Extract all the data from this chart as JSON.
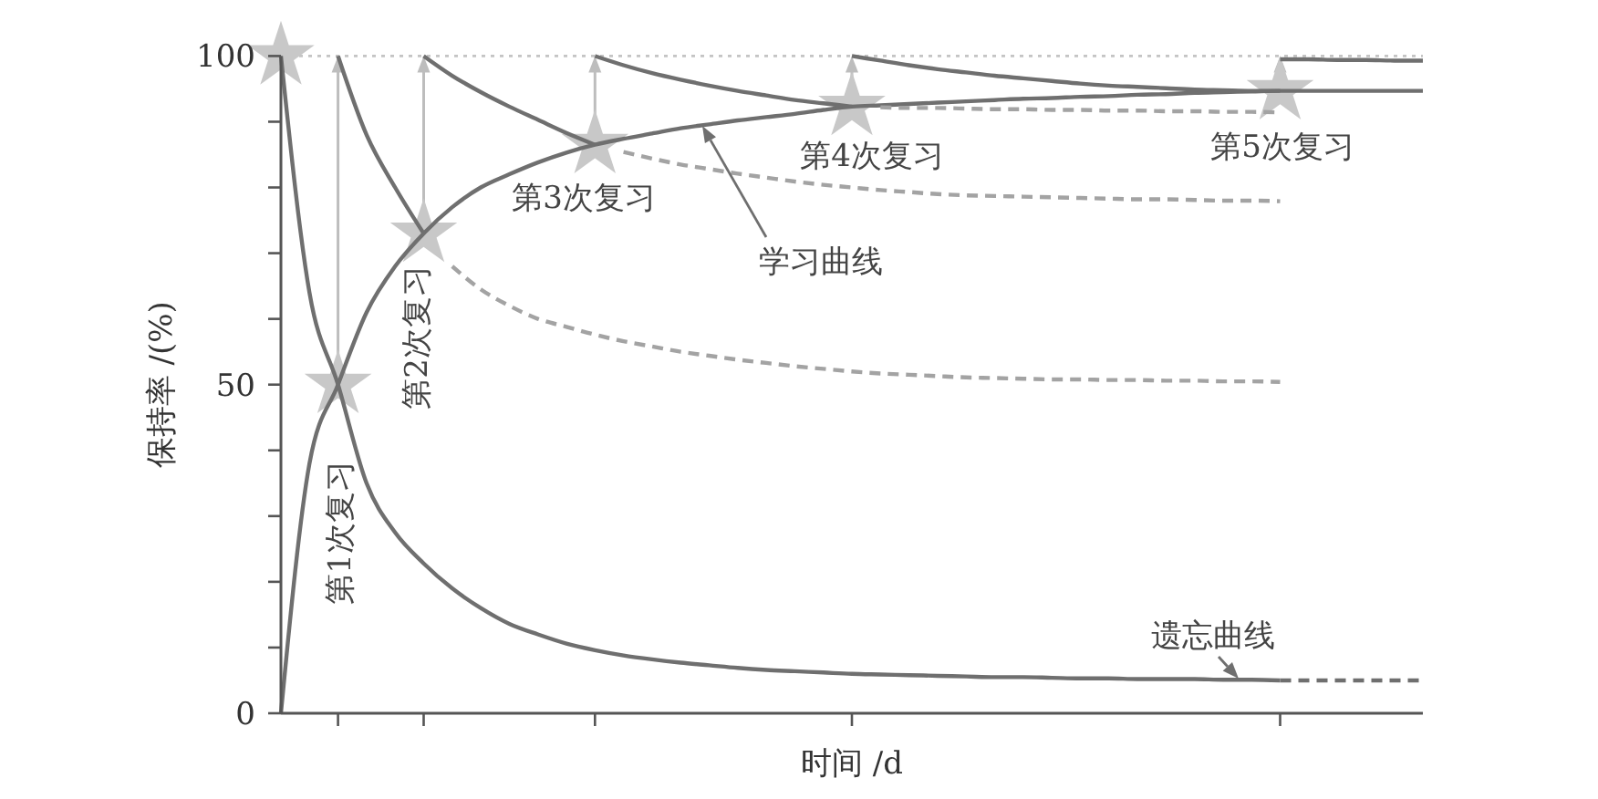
{
  "chart_data": {
    "type": "line",
    "xlabel": "时间 /d",
    "ylabel": "保持率 /(%)",
    "categories": [
      null,
      null,
      null,
      null,
      null,
      null,
      null,
      null,
      null,
      null,
      null,
      null,
      null,
      null,
      null,
      null,
      null,
      null,
      null,
      null,
      null,
      null,
      null,
      null,
      null,
      null,
      null,
      null,
      null,
      null,
      null,
      null,
      null,
      null,
      null,
      null,
      null,
      null,
      null,
      null,
      null
    ],
    "ylim": [
      0,
      100
    ],
    "yticks": [
      0,
      {
        "value": 10,
        "label": null
      },
      {
        "value": 20,
        "label": null
      },
      {
        "value": 30,
        "label": null
      },
      {
        "value": 40,
        "label": null
      },
      50,
      {
        "value": 60,
        "label": null
      },
      {
        "value": 70,
        "label": null
      },
      {
        "value": 80,
        "label": null
      },
      {
        "value": 90,
        "label": null
      },
      100
    ],
    "tick_labels": "y",
    "grid": false,
    "ref_lines": [
      {
        "axis": "y",
        "value": 100,
        "label": null,
        "color": "#c4c4c4",
        "line_style": "dotted"
      }
    ],
    "series": [
      {
        "color": "#6f6f6f",
        "line_style": "solid",
        "values": [
          0,
          38,
          50,
          61,
          68,
          73,
          77,
          80,
          82,
          83.8,
          85.3,
          86.5,
          87.4,
          88.2,
          89,
          89.6,
          90.2,
          90.7,
          91.2,
          91.8,
          92.3,
          92.5,
          92.7,
          92.9,
          93.1,
          93.3,
          93.5,
          93.6,
          93.8,
          93.9,
          94.1,
          94.2,
          94.4,
          94.5,
          94.6,
          94.7,
          94.7,
          94.7,
          94.7,
          94.7,
          94.7
        ]
      },
      {
        "color": "#6f6f6f",
        "line_style": "solid",
        "values": [
          100,
          64,
          50,
          35,
          27.5,
          22.8,
          19,
          16,
          13.6,
          12,
          10.6,
          9.6,
          8.8,
          8.2,
          7.7,
          7.3,
          6.9,
          6.6,
          6.4,
          6.2,
          6,
          5.9,
          5.8,
          5.7,
          5.6,
          5.5,
          5.5,
          5.4,
          5.3,
          5.3,
          5.2,
          5.2,
          5.2,
          5.1,
          5.1,
          5,
          null,
          null,
          null,
          null,
          null
        ]
      },
      {
        "color": "#6f6f6f",
        "line_style": "dashed",
        "values": [
          null,
          null,
          null,
          null,
          null,
          null,
          null,
          null,
          null,
          null,
          null,
          null,
          null,
          null,
          null,
          null,
          null,
          null,
          null,
          null,
          null,
          null,
          null,
          null,
          null,
          null,
          null,
          null,
          null,
          null,
          null,
          null,
          null,
          null,
          null,
          5,
          5,
          5,
          5,
          5,
          5
        ]
      },
      {
        "color": "#6f6f6f",
        "line_style": "solid",
        "values": [
          null,
          null,
          100,
          88,
          80,
          73,
          null,
          null,
          null,
          null,
          null,
          null,
          null,
          null,
          null,
          null,
          null,
          null,
          null,
          null,
          null,
          null,
          null,
          null,
          null,
          null,
          null,
          null,
          null,
          null,
          null,
          null,
          null,
          null,
          null,
          null,
          null,
          null,
          null,
          null,
          null
        ]
      },
      {
        "color": "#a3a3a3",
        "line_style": "dashed",
        "values": [
          null,
          null,
          null,
          null,
          null,
          null,
          68,
          64.5,
          62,
          60,
          58.8,
          57.6,
          56.6,
          55.8,
          55,
          54.4,
          53.8,
          53.3,
          52.8,
          52.4,
          52,
          51.7,
          51.5,
          51.3,
          51.1,
          51,
          50.9,
          50.8,
          50.8,
          50.7,
          50.7,
          50.6,
          50.6,
          50.5,
          50.5,
          50.4,
          null,
          null,
          null,
          null,
          null
        ]
      },
      {
        "color": "#6f6f6f",
        "line_style": "solid",
        "values": [
          null,
          null,
          null,
          null,
          null,
          100,
          97,
          94.5,
          92.3,
          90.3,
          88.3,
          86.5,
          null,
          null,
          null,
          null,
          null,
          null,
          null,
          null,
          null,
          null,
          null,
          null,
          null,
          null,
          null,
          null,
          null,
          null,
          null,
          null,
          null,
          null,
          null,
          null,
          null,
          null,
          null,
          null,
          null
        ]
      },
      {
        "color": "#a3a3a3",
        "line_style": "dashed",
        "values": [
          null,
          null,
          null,
          null,
          null,
          null,
          null,
          null,
          null,
          null,
          null,
          null,
          85.4,
          84.4,
          83.5,
          82.8,
          82.1,
          81.5,
          80.9,
          80.4,
          80,
          79.6,
          79.3,
          79,
          78.8,
          78.7,
          78.6,
          78.5,
          78.4,
          78.3,
          78.2,
          78.2,
          78.1,
          78,
          78,
          77.9,
          null,
          null,
          null,
          null,
          null
        ]
      },
      {
        "color": "#6f6f6f",
        "line_style": "solid",
        "values": [
          null,
          null,
          null,
          null,
          null,
          null,
          null,
          null,
          null,
          null,
          null,
          100,
          98.6,
          97.4,
          96.4,
          95.5,
          94.7,
          94,
          93.3,
          92.8,
          92.3,
          null,
          null,
          null,
          null,
          null,
          null,
          null,
          null,
          null,
          null,
          null,
          null,
          null,
          null,
          null,
          null,
          null,
          null,
          null,
          null
        ]
      },
      {
        "color": "#a3a3a3",
        "line_style": "dashed",
        "values": [
          null,
          null,
          null,
          null,
          null,
          null,
          null,
          null,
          null,
          null,
          null,
          null,
          null,
          null,
          null,
          null,
          null,
          null,
          null,
          null,
          null,
          92.2,
          92.1,
          92.1,
          92,
          91.9,
          91.9,
          91.8,
          91.8,
          91.7,
          91.7,
          91.6,
          91.6,
          91.5,
          91.5,
          91.4,
          null,
          null,
          null,
          null,
          null
        ]
      },
      {
        "color": "#6f6f6f",
        "line_style": "solid",
        "values": [
          null,
          null,
          null,
          null,
          null,
          null,
          null,
          null,
          null,
          null,
          null,
          null,
          null,
          null,
          null,
          null,
          null,
          null,
          null,
          null,
          100,
          99.3,
          98.6,
          98,
          97.5,
          97,
          96.6,
          96.2,
          95.8,
          95.5,
          95.3,
          95.1,
          94.9,
          94.8,
          94.7,
          94.7,
          null,
          null,
          null,
          null,
          null
        ]
      },
      {
        "color": "#6f6f6f",
        "line_style": "solid",
        "values": [
          null,
          null,
          null,
          null,
          null,
          null,
          null,
          null,
          null,
          null,
          null,
          null,
          null,
          null,
          null,
          null,
          null,
          null,
          null,
          null,
          null,
          null,
          null,
          null,
          null,
          null,
          null,
          null,
          null,
          null,
          null,
          null,
          null,
          null,
          null,
          99.5,
          99.5,
          99.4,
          99.4,
          99.3,
          99.3
        ]
      },
      {
        "type": "scatter",
        "color": "#c8c8c8",
        "marker": "star",
        "values": [
          100,
          null,
          50,
          null,
          null,
          73,
          null,
          null,
          null,
          null,
          null,
          86.5,
          null,
          null,
          null,
          null,
          null,
          null,
          null,
          null,
          92.3,
          null,
          null,
          null,
          null,
          null,
          null,
          null,
          null,
          null,
          null,
          null,
          null,
          null,
          null,
          94.7,
          null,
          null,
          null,
          null,
          null
        ]
      }
    ],
    "annotations": [
      "第1次复习",
      "第2次复习",
      "第3次复习",
      "第4次复习",
      "第5次复习",
      "学习曲线",
      "遗忘曲线"
    ]
  }
}
